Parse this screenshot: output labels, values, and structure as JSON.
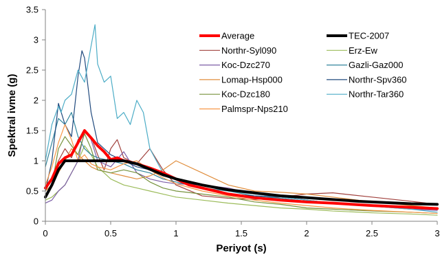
{
  "chart_data": {
    "type": "line",
    "xlabel": "Periyot (s)",
    "ylabel": "Spektral ivme (g)",
    "xlim": [
      0,
      3
    ],
    "ylim": [
      0,
      3.5
    ],
    "x_ticks": [
      "0",
      "0.5",
      "1",
      "1.5",
      "2",
      "2.5",
      "3"
    ],
    "y_ticks": [
      "0",
      "0.5",
      "1",
      "1.5",
      "2",
      "2.5",
      "3",
      "3.5"
    ],
    "grid": false,
    "legend_position": "top-right",
    "legend_columns": 2,
    "series": [
      {
        "name": "Average",
        "color": "#ff0000",
        "width": 4,
        "x": [
          0,
          0.05,
          0.1,
          0.15,
          0.2,
          0.25,
          0.3,
          0.35,
          0.4,
          0.45,
          0.5,
          0.55,
          0.6,
          0.65,
          0.7,
          0.8,
          0.9,
          1.0,
          1.1,
          1.2,
          1.3,
          1.4,
          1.5,
          1.6,
          1.8,
          2.0,
          2.2,
          2.5,
          2.8,
          3.0
        ],
        "y": [
          0.55,
          0.7,
          0.95,
          1.05,
          1.1,
          1.3,
          1.5,
          1.38,
          1.25,
          1.15,
          1.02,
          1.05,
          1.0,
          0.98,
          0.95,
          0.88,
          0.8,
          0.7,
          0.6,
          0.55,
          0.5,
          0.45,
          0.42,
          0.39,
          0.35,
          0.32,
          0.3,
          0.26,
          0.23,
          0.21
        ]
      },
      {
        "name": "TEC-2007",
        "color": "#000000",
        "width": 4,
        "x": [
          0,
          0.05,
          0.1,
          0.15,
          0.2,
          0.3,
          0.4,
          0.5,
          0.6,
          0.7,
          0.8,
          0.9,
          1.0,
          1.2,
          1.4,
          1.6,
          1.8,
          2.0,
          2.2,
          2.4,
          2.6,
          2.8,
          3.0
        ],
        "y": [
          0.4,
          0.6,
          0.85,
          1.0,
          1.0,
          1.0,
          1.0,
          1.0,
          1.0,
          0.95,
          0.86,
          0.77,
          0.7,
          0.6,
          0.52,
          0.47,
          0.42,
          0.39,
          0.36,
          0.33,
          0.31,
          0.29,
          0.28
        ]
      },
      {
        "name": "Northr-Syl090",
        "color": "#a0403c",
        "width": 1.2,
        "x": [
          0,
          0.05,
          0.1,
          0.15,
          0.2,
          0.25,
          0.3,
          0.35,
          0.4,
          0.45,
          0.5,
          0.55,
          0.6,
          0.7,
          0.8,
          0.9,
          1.0,
          1.2,
          1.4,
          1.6,
          1.8,
          2.0,
          2.2,
          2.5,
          2.8,
          3.0
        ],
        "y": [
          0.5,
          0.7,
          1.0,
          1.2,
          1.05,
          1.35,
          1.5,
          1.4,
          1.1,
          0.85,
          1.2,
          1.35,
          1.05,
          0.95,
          1.2,
          0.85,
          0.6,
          0.42,
          0.38,
          0.36,
          0.4,
          0.45,
          0.47,
          0.4,
          0.33,
          0.28
        ]
      },
      {
        "name": "Erz-Ew",
        "color": "#9bbb59",
        "width": 1.2,
        "x": [
          0,
          0.05,
          0.1,
          0.15,
          0.2,
          0.25,
          0.3,
          0.35,
          0.4,
          0.5,
          0.6,
          0.7,
          0.8,
          0.9,
          1.0,
          1.2,
          1.4,
          1.6,
          1.8,
          2.0,
          2.2,
          2.5,
          2.8,
          3.0
        ],
        "y": [
          0.35,
          0.4,
          0.5,
          0.6,
          0.8,
          1.0,
          1.25,
          1.1,
          0.9,
          0.7,
          0.6,
          0.55,
          0.5,
          0.45,
          0.4,
          0.35,
          0.3,
          0.26,
          0.22,
          0.2,
          0.17,
          0.14,
          0.12,
          0.1
        ]
      },
      {
        "name": "Koc-Dzc270",
        "color": "#7c5ea6",
        "width": 1.2,
        "x": [
          0,
          0.05,
          0.1,
          0.15,
          0.2,
          0.25,
          0.3,
          0.35,
          0.4,
          0.5,
          0.6,
          0.7,
          0.8,
          0.9,
          1.0,
          1.2,
          1.4,
          1.6,
          1.8,
          2.0,
          2.2,
          2.5,
          2.8,
          3.0
        ],
        "y": [
          0.3,
          0.35,
          0.5,
          0.6,
          0.8,
          1.0,
          1.5,
          1.35,
          1.0,
          0.9,
          1.15,
          0.8,
          0.7,
          0.65,
          0.62,
          0.6,
          0.55,
          0.45,
          0.4,
          0.35,
          0.3,
          0.25,
          0.2,
          0.18
        ]
      },
      {
        "name": "Gazli-Gaz000",
        "color": "#31859c",
        "width": 1.2,
        "x": [
          0,
          0.05,
          0.1,
          0.15,
          0.2,
          0.25,
          0.3,
          0.35,
          0.4,
          0.5,
          0.6,
          0.7,
          0.8,
          0.9,
          1.0,
          1.2,
          1.4,
          1.6,
          1.8,
          2.0,
          2.2,
          2.5,
          2.8,
          3.0
        ],
        "y": [
          0.9,
          1.3,
          1.7,
          1.6,
          1.8,
          1.4,
          1.2,
          1.1,
          1.05,
          1.0,
          0.95,
          0.85,
          0.8,
          0.7,
          0.65,
          0.55,
          0.5,
          0.42,
          0.38,
          0.33,
          0.3,
          0.26,
          0.22,
          0.2
        ]
      },
      {
        "name": "Lomap-Hsp000",
        "color": "#e08d3c",
        "width": 1.2,
        "x": [
          0,
          0.05,
          0.1,
          0.15,
          0.2,
          0.25,
          0.3,
          0.35,
          0.4,
          0.5,
          0.6,
          0.7,
          0.8,
          0.9,
          1.0,
          1.2,
          1.4,
          1.6,
          1.8,
          2.0,
          2.2,
          2.5,
          2.8,
          3.0
        ],
        "y": [
          0.5,
          0.6,
          0.8,
          1.0,
          1.2,
          1.1,
          1.0,
          0.9,
          0.85,
          0.8,
          0.75,
          0.7,
          0.75,
          0.85,
          1.0,
          0.8,
          0.6,
          0.5,
          0.48,
          0.45,
          0.4,
          0.32,
          0.26,
          0.22
        ]
      },
      {
        "name": "Northr-Spv360",
        "color": "#1f497d",
        "width": 1.2,
        "x": [
          0,
          0.05,
          0.1,
          0.15,
          0.2,
          0.25,
          0.28,
          0.3,
          0.35,
          0.4,
          0.45,
          0.5,
          0.6,
          0.7,
          0.8,
          0.9,
          1.0,
          1.2,
          1.4,
          1.6,
          1.8,
          2.0,
          2.2,
          2.5,
          2.8,
          3.0
        ],
        "y": [
          0.5,
          1.0,
          1.95,
          1.6,
          1.4,
          2.4,
          2.82,
          2.7,
          1.8,
          1.3,
          1.2,
          1.1,
          1.0,
          0.9,
          0.85,
          0.75,
          0.7,
          0.55,
          0.45,
          0.42,
          0.4,
          0.35,
          0.3,
          0.26,
          0.22,
          0.2
        ]
      },
      {
        "name": "Koc-Dzc180",
        "color": "#76923c",
        "width": 1.2,
        "x": [
          0,
          0.05,
          0.1,
          0.15,
          0.2,
          0.25,
          0.3,
          0.35,
          0.4,
          0.5,
          0.6,
          0.7,
          0.8,
          0.9,
          1.0,
          1.2,
          1.4,
          1.6,
          1.8,
          2.0,
          2.2,
          2.5,
          2.8,
          3.0
        ],
        "y": [
          0.4,
          0.6,
          1.2,
          1.4,
          1.25,
          1.1,
          1.45,
          1.2,
          0.85,
          0.8,
          0.85,
          0.8,
          0.65,
          0.55,
          0.5,
          0.45,
          0.4,
          0.32,
          0.28,
          0.22,
          0.2,
          0.17,
          0.15,
          0.13
        ]
      },
      {
        "name": "Northr-Tar360",
        "color": "#4bacc6",
        "width": 1.2,
        "x": [
          0,
          0.05,
          0.1,
          0.12,
          0.15,
          0.2,
          0.25,
          0.3,
          0.35,
          0.38,
          0.4,
          0.45,
          0.5,
          0.55,
          0.6,
          0.65,
          0.7,
          0.75,
          0.8,
          0.9,
          1.0,
          1.2,
          1.4,
          1.6,
          1.8,
          2.0,
          2.2,
          2.5,
          2.8,
          3.0
        ],
        "y": [
          1.0,
          1.6,
          1.9,
          1.8,
          2.0,
          2.1,
          2.5,
          2.3,
          2.9,
          3.25,
          2.6,
          2.3,
          2.4,
          1.7,
          1.8,
          1.6,
          2.0,
          1.8,
          1.2,
          0.8,
          0.7,
          0.6,
          0.5,
          0.45,
          0.4,
          0.35,
          0.3,
          0.25,
          0.2,
          0.15
        ]
      },
      {
        "name": "Palmspr-Nps210",
        "color": "#f79646",
        "width": 1.2,
        "x": [
          0,
          0.05,
          0.1,
          0.15,
          0.2,
          0.25,
          0.3,
          0.35,
          0.4,
          0.5,
          0.6,
          0.7,
          0.8,
          0.9,
          1.0,
          1.2,
          1.4,
          1.6,
          1.8,
          2.0,
          2.2,
          2.5,
          2.8,
          3.0
        ],
        "y": [
          0.6,
          0.9,
          1.3,
          1.6,
          1.35,
          1.0,
          1.1,
          0.95,
          0.9,
          0.85,
          0.95,
          1.0,
          0.85,
          0.72,
          0.62,
          0.5,
          0.42,
          0.35,
          0.3,
          0.26,
          0.22,
          0.18,
          0.15,
          0.13
        ]
      }
    ],
    "legend_order": [
      "Average",
      "TEC-2007",
      "Northr-Syl090",
      "Erz-Ew",
      "Koc-Dzc270",
      "Gazli-Gaz000",
      "Lomap-Hsp000",
      "Northr-Spv360",
      "Koc-Dzc180",
      "Northr-Tar360",
      "Palmspr-Nps210"
    ]
  }
}
